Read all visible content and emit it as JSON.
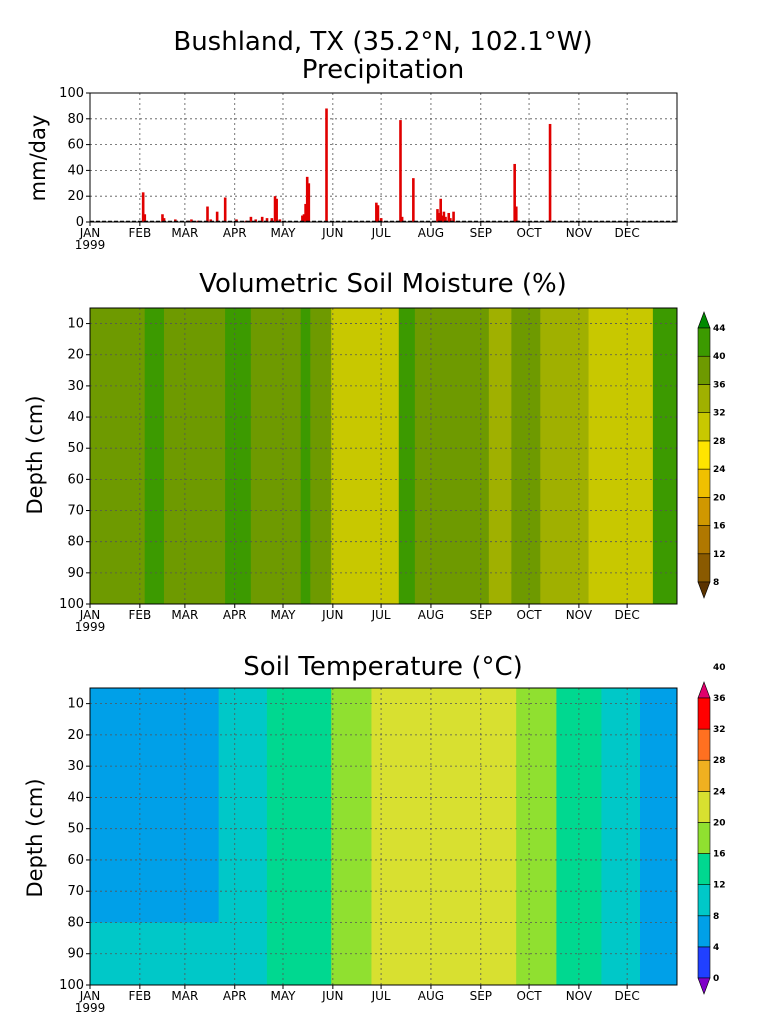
{
  "header": {
    "title": "Bushland, TX  (35.2°N, 102.1°W)",
    "subtitle": "Precipitation"
  },
  "colors": {
    "precip_bar": "#e00000",
    "moisture_scale": [
      "#5a3300",
      "#8a5a00",
      "#b07800",
      "#d09800",
      "#f0c000",
      "#ffe400",
      "#c8c800",
      "#a0b000",
      "#6e9a00",
      "#3c9a00",
      "#008a00"
    ],
    "temperature_scale": [
      "#8000c8",
      "#2040ff",
      "#00a0e8",
      "#00c8c8",
      "#00d890",
      "#90e030",
      "#d8e030",
      "#f0b020",
      "#ff7020",
      "#ff0000",
      "#e0006c"
    ]
  },
  "chart_data": [
    {
      "type": "bar",
      "title": "Precipitation",
      "ylabel": "mm/day",
      "xlabel": "",
      "ylim": [
        0,
        100
      ],
      "yticks": [
        0,
        20,
        40,
        60,
        80,
        100
      ],
      "x_ticks": [
        "JAN\n1999",
        "FEB",
        "MAR",
        "APR",
        "MAY",
        "JUN",
        "JUL",
        "AUG",
        "SEP",
        "OCT",
        "NOV",
        "DEC"
      ],
      "grid": true,
      "x_unit": "day of year 1999",
      "series": [
        {
          "x": [
            33,
            34,
            45,
            46,
            53,
            61,
            63,
            67,
            73,
            75,
            79,
            84,
            91,
            97,
            100,
            103,
            107,
            110,
            113,
            115,
            116,
            118,
            132,
            133,
            134,
            135,
            136,
            147,
            178,
            179,
            181,
            193,
            194,
            201,
            216,
            217,
            218,
            219,
            220,
            221,
            223,
            224,
            226,
            264,
            265,
            266,
            286
          ],
          "values": [
            23,
            6,
            6,
            3,
            2,
            1,
            2,
            1,
            12,
            2,
            8,
            19,
            2,
            1,
            4,
            2,
            4,
            3,
            3,
            20,
            18,
            2,
            5,
            6,
            14,
            35,
            30,
            88,
            15,
            13,
            3,
            79,
            4,
            34,
            10,
            7,
            18,
            5,
            8,
            4,
            7,
            3,
            8,
            45,
            12,
            1,
            76
          ]
        }
      ]
    },
    {
      "type": "heatmap",
      "title": "Volumetric Soil Moisture (%)",
      "ylabel": "Depth (cm)",
      "xlabel": "",
      "x_ticks": [
        "JAN\n1999",
        "FEB",
        "MAR",
        "APR",
        "MAY",
        "JUN",
        "JUL",
        "AUG",
        "SEP",
        "OCT",
        "NOV",
        "DEC"
      ],
      "ylim": [
        100,
        5
      ],
      "yticks": [
        10,
        20,
        30,
        40,
        50,
        60,
        70,
        80,
        90,
        100
      ],
      "grid": true,
      "colorbar_levels": [
        8,
        12,
        16,
        20,
        24,
        28,
        32,
        36,
        40,
        44
      ],
      "bands_by_day": [
        {
          "x": [
            0,
            14
          ],
          "value": 38
        },
        {
          "x": [
            14,
            34
          ],
          "value": 38
        },
        {
          "x": [
            34,
            46
          ],
          "value": 42
        },
        {
          "x": [
            46,
            60
          ],
          "value": 38
        },
        {
          "x": [
            60,
            84
          ],
          "value": 38
        },
        {
          "x": [
            84,
            100
          ],
          "value": 40
        },
        {
          "x": [
            100,
            115
          ],
          "value": 38
        },
        {
          "x": [
            115,
            131
          ],
          "value": 38
        },
        {
          "x": [
            131,
            137
          ],
          "value": 42
        },
        {
          "x": [
            137,
            150
          ],
          "value": 36
        },
        {
          "x": [
            150,
            162
          ],
          "value": 30
        },
        {
          "x": [
            162,
            192
          ],
          "value": 30
        },
        {
          "x": [
            192,
            202
          ],
          "value": 42
        },
        {
          "x": [
            202,
            224
          ],
          "value": 38
        },
        {
          "x": [
            224,
            248
          ],
          "value": 36
        },
        {
          "x": [
            248,
            262
          ],
          "value": 34
        },
        {
          "x": [
            262,
            280
          ],
          "value": 36
        },
        {
          "x": [
            280,
            310
          ],
          "value": 34
        },
        {
          "x": [
            310,
            330
          ],
          "value": 30
        },
        {
          "x": [
            330,
            350
          ],
          "value": 28
        },
        {
          "x": [
            350,
            365
          ],
          "value": 40
        }
      ]
    },
    {
      "type": "heatmap",
      "title": "Soil Temperature (°C)",
      "ylabel": "Depth (cm)",
      "xlabel": "",
      "x_ticks": [
        "JAN\n1999",
        "FEB",
        "MAR",
        "APR",
        "MAY",
        "JUN",
        "JUL",
        "AUG",
        "SEP",
        "OCT",
        "NOV",
        "DEC"
      ],
      "ylim": [
        100,
        5
      ],
      "yticks": [
        10,
        20,
        30,
        40,
        50,
        60,
        70,
        80,
        90,
        100
      ],
      "grid": true,
      "colorbar_levels": [
        0,
        4,
        8,
        12,
        16,
        20,
        24,
        28,
        32,
        36,
        40
      ],
      "bands_by_day": [
        {
          "x": [
            0,
            32
          ],
          "value": 6,
          "lower_value": 10
        },
        {
          "x": [
            32,
            80
          ],
          "value": 6,
          "lower_value": 10
        },
        {
          "x": [
            80,
            110
          ],
          "value": 10
        },
        {
          "x": [
            110,
            150
          ],
          "value": 14
        },
        {
          "x": [
            150,
            175
          ],
          "value": 18
        },
        {
          "x": [
            175,
            230
          ],
          "value": 22
        },
        {
          "x": [
            230,
            265
          ],
          "value": 22
        },
        {
          "x": [
            265,
            290
          ],
          "value": 18
        },
        {
          "x": [
            290,
            318
          ],
          "value": 14
        },
        {
          "x": [
            318,
            342
          ],
          "value": 10
        },
        {
          "x": [
            342,
            365
          ],
          "value": 6
        }
      ]
    }
  ]
}
